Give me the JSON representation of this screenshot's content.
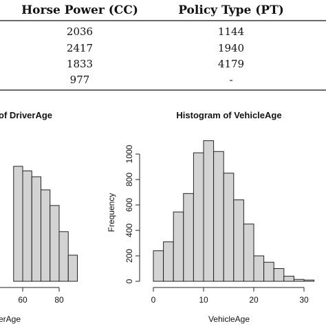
{
  "table": {
    "headers": [
      "Horse Power (CC)",
      "Policy Type (PT)"
    ],
    "rows": [
      [
        "2036",
        "1144"
      ],
      [
        "2417",
        "1940"
      ],
      [
        "1833",
        "4179"
      ],
      [
        "977",
        "-"
      ]
    ]
  },
  "chart_data": [
    {
      "type": "bar",
      "title": "of DriverAge",
      "xlabel": "erAge",
      "ylabel": "",
      "bin_width": 5,
      "bins_start": [
        55,
        60,
        65,
        70,
        75,
        80,
        85
      ],
      "values": [
        880,
        845,
        800,
        700,
        580,
        380,
        200
      ],
      "xlim": [
        50,
        90
      ],
      "ylim": [
        0,
        1000
      ],
      "xticks": [
        60,
        80
      ],
      "grid": false,
      "note": "left histogram is cropped at the image edge"
    },
    {
      "type": "bar",
      "title": "Histogram of VehicleAge",
      "xlabel": "VehicleAge",
      "ylabel": "Frequency",
      "bin_width": 2,
      "bins_start": [
        0,
        2,
        4,
        6,
        8,
        10,
        12,
        14,
        16,
        18,
        20,
        22,
        24,
        26,
        28,
        30
      ],
      "values": [
        240,
        310,
        545,
        690,
        1010,
        1105,
        1020,
        850,
        640,
        450,
        200,
        150,
        100,
        40,
        15,
        10
      ],
      "xlim": [
        0,
        30
      ],
      "ylim": [
        0,
        1000
      ],
      "xticks": [
        0,
        10,
        20,
        30
      ],
      "yticks": [
        0,
        200,
        400,
        600,
        800,
        1000
      ],
      "grid": false
    }
  ]
}
